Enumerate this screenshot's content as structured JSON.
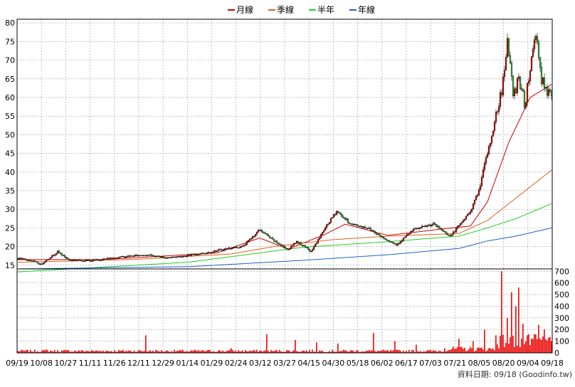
{
  "legend": [
    {
      "label": "月線",
      "color": "#cc0000"
    },
    {
      "label": "季線",
      "color": "#e06020"
    },
    {
      "label": "半年",
      "color": "#22cc22"
    },
    {
      "label": "年線",
      "color": "#1f5fc8"
    }
  ],
  "footer": "資料日期: 09/18  (Goodinfo.tw)",
  "colors": {
    "up": "#dd0000",
    "down": "#33bb33",
    "volume": "#ee1111",
    "grid": "#999999"
  },
  "chart_data": [
    {
      "type": "candlestick",
      "ylim": [
        14,
        81
      ],
      "yticks": [
        15,
        20,
        25,
        30,
        35,
        40,
        45,
        50,
        55,
        60,
        65,
        70,
        75,
        80
      ],
      "grid": true,
      "legend_position": "top-center",
      "x_tick_labels": [
        "09/19",
        "10/08",
        "10/27",
        "11/11",
        "11/26",
        "12/11",
        "12/29",
        "01/14",
        "01/29",
        "02/24",
        "03/12",
        "03/27",
        "04/15",
        "04/30",
        "05/18",
        "06/02",
        "06/17",
        "07/03",
        "07/21",
        "08/05",
        "08/20",
        "09/04",
        "09/18"
      ],
      "price_path": [
        [
          0,
          16.8
        ],
        [
          10,
          16.2
        ],
        [
          16,
          15.2
        ],
        [
          28,
          18.6
        ],
        [
          36,
          16.4
        ],
        [
          52,
          16.2
        ],
        [
          70,
          17.1
        ],
        [
          90,
          17.8
        ],
        [
          104,
          17.0
        ],
        [
          118,
          17.5
        ],
        [
          132,
          18.3
        ],
        [
          148,
          19.5
        ],
        [
          158,
          20.0
        ],
        [
          170,
          24.5
        ],
        [
          180,
          21.5
        ],
        [
          190,
          19.2
        ],
        [
          196,
          21.5
        ],
        [
          206,
          18.6
        ],
        [
          216,
          25.0
        ],
        [
          224,
          29.5
        ],
        [
          234,
          26.0
        ],
        [
          246,
          25.0
        ],
        [
          256,
          22.5
        ],
        [
          266,
          20.5
        ],
        [
          278,
          24.5
        ],
        [
          292,
          26.0
        ],
        [
          304,
          22.8
        ],
        [
          312,
          26.5
        ],
        [
          318,
          29.5
        ],
        [
          324,
          35.0
        ],
        [
          328,
          42.0
        ],
        [
          332,
          48.0
        ],
        [
          336,
          55.0
        ],
        [
          340,
          62.0
        ],
        [
          344,
          76.0
        ],
        [
          348,
          60.0
        ],
        [
          352,
          66.0
        ],
        [
          356,
          58.0
        ],
        [
          360,
          68.0
        ],
        [
          364,
          78.0
        ],
        [
          368,
          65.0
        ],
        [
          372,
          60.0
        ],
        [
          375,
          62.0
        ]
      ],
      "series": [
        {
          "name": "月線",
          "color": "#cc0000",
          "path": [
            [
              0,
              16.5
            ],
            [
              60,
              16.5
            ],
            [
              140,
              18.3
            ],
            [
              170,
              22.3
            ],
            [
              190,
              19.3
            ],
            [
              216,
              23.3
            ],
            [
              230,
              26.0
            ],
            [
              260,
              23.0
            ],
            [
              300,
              24.8
            ],
            [
              318,
              25.5
            ],
            [
              330,
              32.0
            ],
            [
              345,
              48.0
            ],
            [
              360,
              60.0
            ],
            [
              375,
              63.5
            ]
          ]
        },
        {
          "name": "季線",
          "color": "#e06020",
          "path": [
            [
              0,
              15.8
            ],
            [
              80,
              16.5
            ],
            [
              150,
              18.0
            ],
            [
              180,
              20.0
            ],
            [
              220,
              21.8
            ],
            [
              260,
              22.8
            ],
            [
              310,
              23.5
            ],
            [
              330,
              27.0
            ],
            [
              350,
              33.0
            ],
            [
              375,
              40.5
            ]
          ]
        },
        {
          "name": "半年",
          "color": "#22cc22",
          "path": [
            [
              0,
              13.2
            ],
            [
              120,
              15.8
            ],
            [
              200,
              19.8
            ],
            [
              260,
              21.3
            ],
            [
              310,
              22.8
            ],
            [
              330,
              25.0
            ],
            [
              350,
              27.5
            ],
            [
              375,
              31.5
            ]
          ]
        },
        {
          "name": "年線",
          "color": "#1f5fc8",
          "path": [
            [
              0,
              14.0
            ],
            [
              120,
              14.6
            ],
            [
              200,
              16.3
            ],
            [
              260,
              17.8
            ],
            [
              310,
              19.5
            ],
            [
              330,
              21.5
            ],
            [
              350,
              22.8
            ],
            [
              375,
              25.0
            ]
          ]
        }
      ]
    },
    {
      "type": "bar",
      "name": "volume",
      "ylim": [
        0,
        720
      ],
      "yticks": [
        0,
        100,
        200,
        300,
        400,
        500,
        600,
        700
      ],
      "spikes": [
        [
          20,
          30
        ],
        [
          60,
          20
        ],
        [
          90,
          150
        ],
        [
          120,
          10
        ],
        [
          150,
          40
        ],
        [
          175,
          160
        ],
        [
          195,
          110
        ],
        [
          210,
          90
        ],
        [
          225,
          80
        ],
        [
          250,
          170
        ],
        [
          265,
          100
        ],
        [
          280,
          70
        ],
        [
          300,
          40
        ],
        [
          310,
          120
        ],
        [
          320,
          100
        ],
        [
          328,
          200
        ],
        [
          336,
          150
        ],
        [
          340,
          700
        ],
        [
          344,
          300
        ],
        [
          347,
          520
        ],
        [
          350,
          400
        ],
        [
          352,
          560
        ],
        [
          355,
          250
        ],
        [
          358,
          150
        ],
        [
          362,
          120
        ],
        [
          366,
          240
        ],
        [
          370,
          200
        ],
        [
          373,
          130
        ]
      ]
    }
  ]
}
